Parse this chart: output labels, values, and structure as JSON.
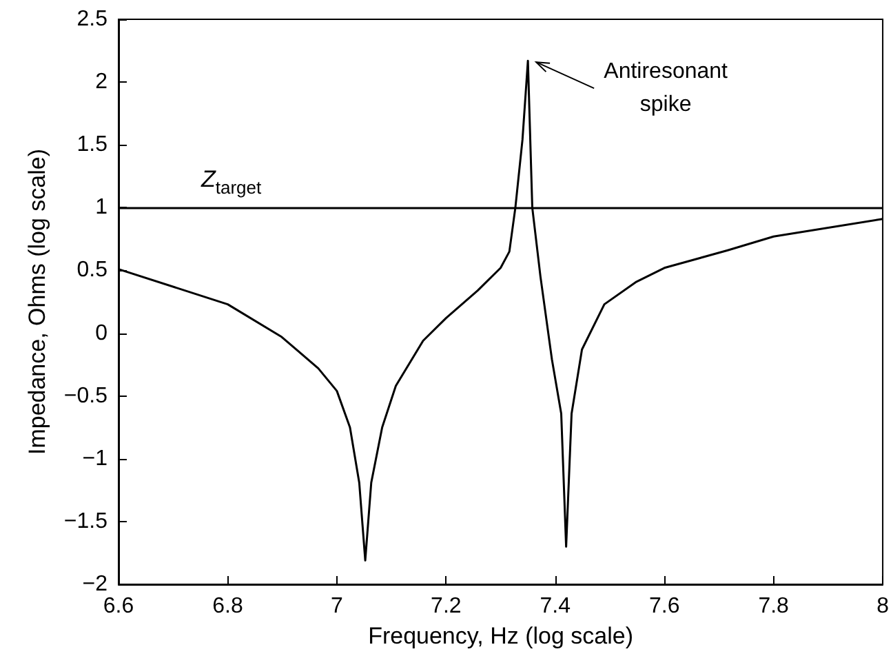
{
  "chart_data": {
    "type": "line",
    "xlabel": "Frequency, Hz (log scale)",
    "ylabel": "Impedance, Ohms (log scale)",
    "series": [
      {
        "color": "#000000",
        "x": [
          6.6,
          6.8,
          6.899,
          6.966,
          7.0,
          7.024,
          7.041,
          7.052,
          7.063,
          7.083,
          7.108,
          7.158,
          7.2,
          7.258,
          7.3,
          7.316,
          7.327,
          7.34,
          7.35,
          7.358,
          7.373,
          7.394,
          7.411,
          7.42,
          7.43,
          7.449,
          7.49,
          7.549,
          7.6,
          7.716,
          7.8,
          8.0
        ],
        "values": [
          0.51,
          0.23,
          -0.03,
          -0.28,
          -0.46,
          -0.75,
          -1.19,
          -1.81,
          -1.19,
          -0.75,
          -0.42,
          -0.06,
          0.12,
          0.34,
          0.52,
          0.65,
          1.0,
          1.54,
          2.17,
          1.0,
          0.45,
          -0.21,
          -0.64,
          -1.7,
          -0.64,
          -0.13,
          0.23,
          0.41,
          0.52,
          0.66,
          0.77,
          0.91
        ]
      }
    ],
    "xlim": [
      6.6,
      8
    ],
    "xticks": [
      6.6,
      6.8,
      7,
      7.2,
      7.4,
      7.6,
      7.8,
      8
    ],
    "ylim": [
      -2,
      2.5
    ],
    "yticks": [
      -2,
      -1.5,
      -1,
      -0.5,
      0,
      0.5,
      1,
      1.5,
      2,
      2.5
    ],
    "ref_lines": [
      {
        "axis": "y",
        "value": 1,
        "label": "Z$_{target}$",
        "color": "#000000"
      }
    ],
    "annotations": [
      {
        "text": "Antiresonant\nspike",
        "x": 7.35,
        "y": 2.17
      }
    ],
    "marker": "none",
    "line_style": "solid"
  }
}
